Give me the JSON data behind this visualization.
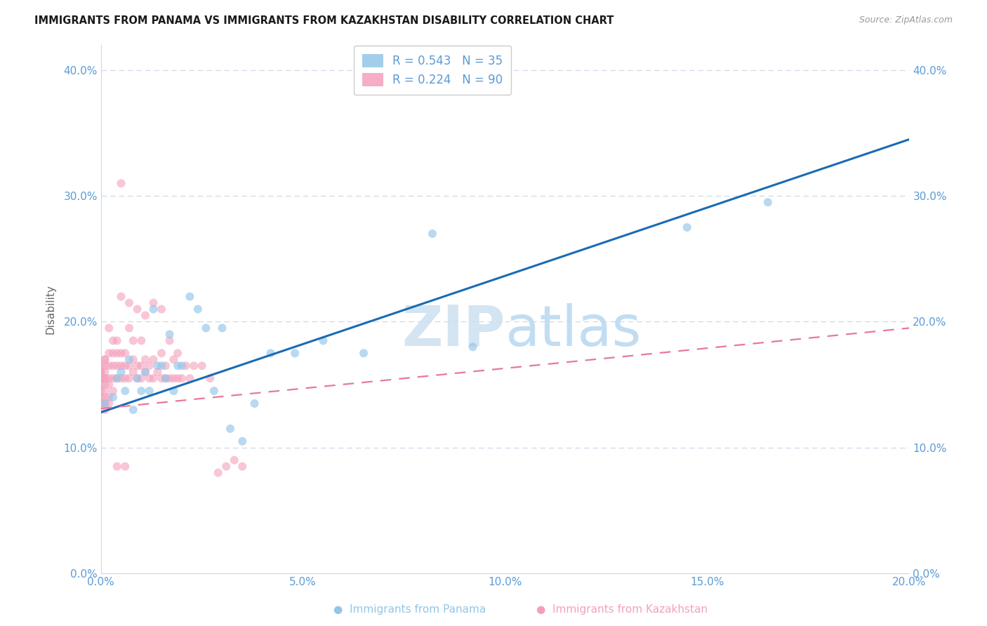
{
  "title": "IMMIGRANTS FROM PANAMA VS IMMIGRANTS FROM KAZAKHSTAN DISABILITY CORRELATION CHART",
  "source": "Source: ZipAtlas.com",
  "ylabel": "Disability",
  "xlim": [
    0.0,
    0.2
  ],
  "ylim": [
    0.0,
    0.42
  ],
  "x_ticks": [
    0.0,
    0.05,
    0.1,
    0.15,
    0.2
  ],
  "y_ticks": [
    0.0,
    0.1,
    0.2,
    0.3,
    0.4
  ],
  "color_panama": "#93c6e8",
  "color_kazakhstan": "#f4a0bc",
  "trendline_panama_color": "#1a6bb5",
  "trendline_kazakhstan_color": "#e8789a",
  "tick_color": "#5b9bd5",
  "grid_color": "#d0d8e8",
  "watermark_zip_color": "#cce0f0",
  "watermark_atlas_color": "#b8d8f0",
  "panama_x": [
    0.001,
    0.003,
    0.004,
    0.005,
    0.006,
    0.007,
    0.008,
    0.009,
    0.01,
    0.011,
    0.012,
    0.013,
    0.014,
    0.015,
    0.016,
    0.017,
    0.018,
    0.019,
    0.02,
    0.022,
    0.024,
    0.026,
    0.028,
    0.03,
    0.032,
    0.035,
    0.038,
    0.042,
    0.048,
    0.055,
    0.065,
    0.082,
    0.092,
    0.145,
    0.165
  ],
  "panama_y": [
    0.135,
    0.14,
    0.155,
    0.16,
    0.145,
    0.17,
    0.13,
    0.155,
    0.145,
    0.16,
    0.145,
    0.21,
    0.165,
    0.165,
    0.155,
    0.19,
    0.145,
    0.165,
    0.165,
    0.22,
    0.21,
    0.195,
    0.145,
    0.195,
    0.115,
    0.105,
    0.135,
    0.175,
    0.175,
    0.185,
    0.175,
    0.27,
    0.18,
    0.275,
    0.295
  ],
  "trendline_panama_x0": 0.0,
  "trendline_panama_y0": 0.128,
  "trendline_panama_x1": 0.2,
  "trendline_panama_y1": 0.345,
  "trendline_kazakhstan_x0": 0.0,
  "trendline_kazakhstan_y0": 0.131,
  "trendline_kazakhstan_x1": 0.2,
  "trendline_kazakhstan_y1": 0.195,
  "kazakhstan_x": [
    0.0,
    0.0,
    0.0,
    0.0,
    0.0,
    0.0,
    0.0,
    0.0,
    0.0,
    0.0,
    0.001,
    0.001,
    0.001,
    0.001,
    0.001,
    0.001,
    0.001,
    0.001,
    0.001,
    0.001,
    0.001,
    0.002,
    0.002,
    0.002,
    0.002,
    0.002,
    0.002,
    0.002,
    0.003,
    0.003,
    0.003,
    0.003,
    0.003,
    0.004,
    0.004,
    0.004,
    0.004,
    0.005,
    0.005,
    0.005,
    0.005,
    0.006,
    0.006,
    0.006,
    0.007,
    0.007,
    0.007,
    0.008,
    0.008,
    0.008,
    0.009,
    0.009,
    0.01,
    0.01,
    0.01,
    0.011,
    0.011,
    0.012,
    0.012,
    0.013,
    0.013,
    0.014,
    0.015,
    0.015,
    0.016,
    0.016,
    0.017,
    0.018,
    0.018,
    0.019,
    0.02,
    0.021,
    0.022,
    0.023,
    0.025,
    0.027,
    0.029,
    0.031,
    0.033,
    0.035,
    0.005,
    0.007,
    0.009,
    0.011,
    0.013,
    0.015,
    0.017,
    0.019,
    0.004,
    0.006
  ],
  "kazakhstan_y": [
    0.135,
    0.14,
    0.145,
    0.15,
    0.155,
    0.155,
    0.16,
    0.16,
    0.165,
    0.135,
    0.13,
    0.14,
    0.145,
    0.15,
    0.155,
    0.155,
    0.16,
    0.165,
    0.17,
    0.135,
    0.17,
    0.135,
    0.14,
    0.15,
    0.155,
    0.165,
    0.175,
    0.195,
    0.145,
    0.155,
    0.165,
    0.175,
    0.185,
    0.155,
    0.165,
    0.175,
    0.185,
    0.155,
    0.165,
    0.175,
    0.22,
    0.155,
    0.165,
    0.175,
    0.155,
    0.165,
    0.195,
    0.16,
    0.17,
    0.185,
    0.155,
    0.165,
    0.155,
    0.165,
    0.185,
    0.16,
    0.17,
    0.155,
    0.165,
    0.155,
    0.17,
    0.16,
    0.155,
    0.175,
    0.155,
    0.165,
    0.155,
    0.155,
    0.17,
    0.155,
    0.155,
    0.165,
    0.155,
    0.165,
    0.165,
    0.155,
    0.08,
    0.085,
    0.09,
    0.085,
    0.31,
    0.215,
    0.21,
    0.205,
    0.215,
    0.21,
    0.185,
    0.175,
    0.085,
    0.085
  ]
}
